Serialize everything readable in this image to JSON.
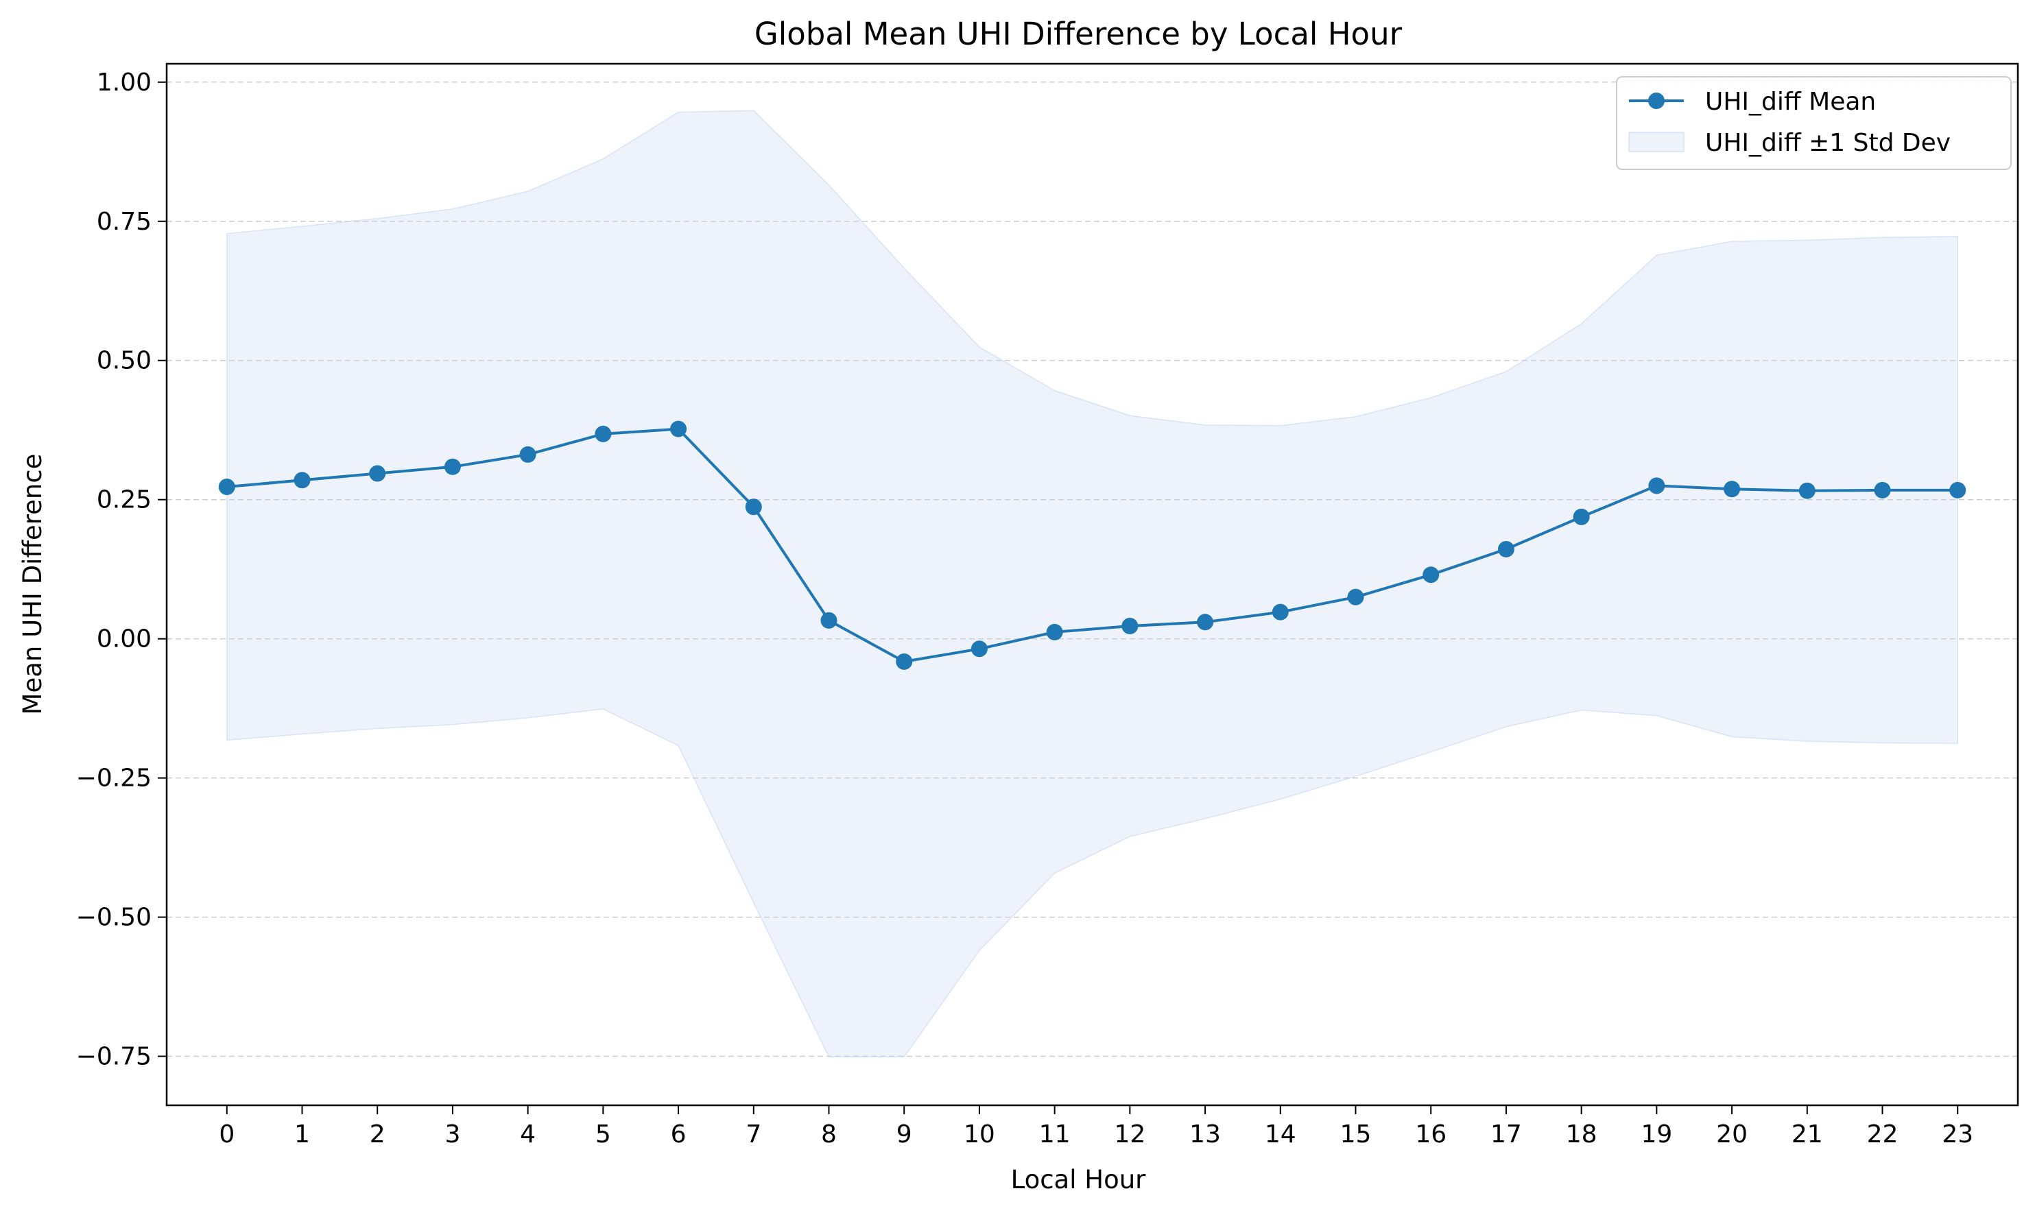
{
  "chart_data": {
    "type": "line",
    "title": "Global Mean UHI Difference by Local Hour",
    "xlabel": "Local Hour",
    "ylabel": "Mean UHI Difference",
    "x": [
      0,
      1,
      2,
      3,
      4,
      5,
      6,
      7,
      8,
      9,
      10,
      11,
      12,
      13,
      14,
      15,
      16,
      17,
      18,
      19,
      20,
      21,
      22,
      23
    ],
    "x_tick_labels": [
      "0",
      "1",
      "2",
      "3",
      "4",
      "5",
      "6",
      "7",
      "8",
      "9",
      "10",
      "11",
      "12",
      "13",
      "14",
      "15",
      "16",
      "17",
      "18",
      "19",
      "20",
      "21",
      "22",
      "23"
    ],
    "xlim": [
      -0.8,
      23.8
    ],
    "ylim": [
      -0.838,
      1.033
    ],
    "y_ticks": [
      1.0,
      0.75,
      0.5,
      0.25,
      0.0,
      -0.25,
      -0.5,
      -0.75
    ],
    "y_tick_labels": [
      "1.00",
      "0.75",
      "0.50",
      "0.25",
      "0.00",
      "−0.25",
      "−0.50",
      "−0.75"
    ],
    "grid": "horizontal, dashed",
    "legend_position": "top-right",
    "series": [
      {
        "name": "UHI_diff Mean",
        "kind": "line-marker",
        "color": "#1f77b4",
        "values": [
          0.273,
          0.285,
          0.297,
          0.309,
          0.331,
          0.368,
          0.377,
          0.237,
          0.033,
          -0.041,
          -0.018,
          0.012,
          0.023,
          0.03,
          0.048,
          0.075,
          0.115,
          0.161,
          0.219,
          0.275,
          0.269,
          0.266,
          0.267,
          0.267
        ]
      },
      {
        "name": "UHI_diff ±1 Std Dev",
        "kind": "band",
        "color": "#c6d6f2",
        "upper": [
          0.728,
          0.741,
          0.755,
          0.772,
          0.804,
          0.862,
          0.946,
          0.949,
          0.815,
          0.666,
          0.524,
          0.446,
          0.401,
          0.384,
          0.383,
          0.399,
          0.433,
          0.48,
          0.566,
          0.689,
          0.714,
          0.716,
          0.721,
          0.723
        ],
        "lower": [
          -0.182,
          -0.171,
          -0.161,
          -0.154,
          -0.142,
          -0.126,
          -0.192,
          -0.474,
          -0.751,
          -0.751,
          -0.56,
          -0.421,
          -0.355,
          -0.323,
          -0.288,
          -0.247,
          -0.203,
          -0.158,
          -0.128,
          -0.138,
          -0.176,
          -0.184,
          -0.187,
          -0.188
        ]
      }
    ]
  }
}
